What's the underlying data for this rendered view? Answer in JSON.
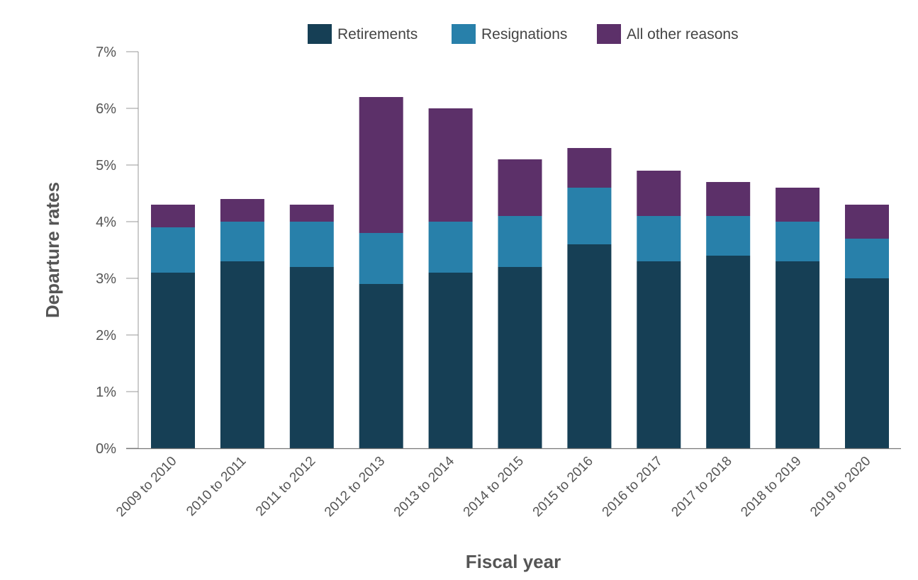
{
  "chart_data": {
    "type": "bar",
    "stacked": true,
    "title": "",
    "xlabel": "Fiscal year",
    "ylabel": "Departure rates",
    "ylim": [
      0,
      7
    ],
    "yticks": [
      "0%",
      "1%",
      "2%",
      "3%",
      "4%",
      "5%",
      "6%",
      "7%"
    ],
    "legend_position": "top-center",
    "categories": [
      "2009 to 2010",
      "2010 to 2011",
      "2011 to 2012",
      "2012 to 2013",
      "2013 to 2014",
      "2014 to 2015",
      "2015 to 2016",
      "2016 to 2017",
      "2017 to 2018",
      "2018 to 2019",
      "2019 to 2020"
    ],
    "series": [
      {
        "name": "Retirements",
        "color": "#163f55",
        "values": [
          3.1,
          3.3,
          3.2,
          2.9,
          3.1,
          3.2,
          3.6,
          3.3,
          3.4,
          3.3,
          3.0
        ]
      },
      {
        "name": "Resignations",
        "color": "#2880aa",
        "values": [
          0.8,
          0.7,
          0.8,
          0.9,
          0.9,
          0.9,
          1.0,
          0.8,
          0.7,
          0.7,
          0.7
        ]
      },
      {
        "name": "All other reasons",
        "color": "#5c3069",
        "values": [
          0.4,
          0.4,
          0.3,
          2.4,
          2.0,
          1.0,
          0.7,
          0.8,
          0.6,
          0.6,
          0.6
        ]
      }
    ]
  }
}
